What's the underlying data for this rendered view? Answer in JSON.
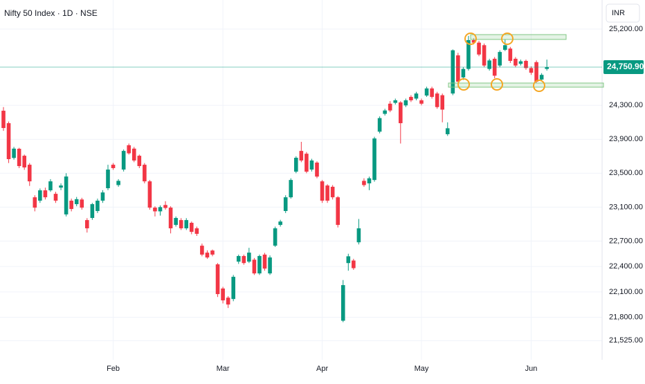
{
  "chart_data": {
    "type": "candlestick",
    "title": "Nifty 50 Index · 1D · NSE",
    "currency": "INR",
    "up_color": "#089981",
    "down_color": "#f23645",
    "ylim": [
      21340,
      25543
    ],
    "yticks": [
      {
        "value": 21525,
        "label": "21,525.00"
      },
      {
        "value": 21800,
        "label": "21,800.00"
      },
      {
        "value": 22100,
        "label": "22,100.00"
      },
      {
        "value": 22400,
        "label": "22,400.00"
      },
      {
        "value": 22700,
        "label": "22,700.00"
      },
      {
        "value": 23100,
        "label": "23,100.00"
      },
      {
        "value": 23500,
        "label": "23,500.00"
      },
      {
        "value": 23900,
        "label": "23,900.00"
      },
      {
        "value": 24300,
        "label": "24,300.00"
      },
      {
        "value": 25200,
        "label": "25,200.00"
      }
    ],
    "last_price": {
      "value": 24750.9,
      "label": "24,750.90"
    },
    "grid": true,
    "categories": [
      null,
      null,
      null,
      null,
      null,
      null,
      null,
      null,
      null,
      null,
      null,
      null,
      null,
      null,
      null,
      null,
      null,
      null,
      null,
      null,
      null,
      "Feb",
      null,
      null,
      null,
      null,
      null,
      null,
      null,
      null,
      null,
      null,
      null,
      null,
      null,
      null,
      null,
      null,
      null,
      null,
      null,
      null,
      "Mar",
      null,
      null,
      null,
      null,
      null,
      null,
      null,
      null,
      null,
      null,
      null,
      null,
      null,
      null,
      null,
      null,
      null,
      null,
      "Apr",
      null,
      null,
      null,
      null,
      null,
      null,
      null,
      null,
      null,
      null,
      null,
      null,
      null,
      null,
      null,
      null,
      null,
      null,
      "May",
      null,
      null,
      null,
      null,
      null,
      null,
      null,
      null,
      null,
      null,
      null,
      null,
      null,
      null,
      null,
      null,
      null,
      null,
      null,
      null,
      "Jun",
      null,
      null,
      null
    ],
    "ohlc": [
      [
        24237,
        24280,
        24000,
        24033
      ],
      [
        24090,
        24110,
        23620,
        23666
      ],
      [
        23680,
        23810,
        23660,
        23790
      ],
      [
        23788,
        23800,
        23560,
        23584
      ],
      [
        23706,
        23720,
        23540,
        23568
      ],
      [
        23600,
        23620,
        23350,
        23404
      ],
      [
        23216,
        23240,
        23050,
        23094
      ],
      [
        23176,
        23320,
        23150,
        23298
      ],
      [
        23298,
        23330,
        23190,
        23216
      ],
      [
        23298,
        23430,
        23280,
        23404
      ],
      [
        23257,
        23280,
        23150,
        23176
      ],
      [
        23330,
        23380,
        23300,
        23355
      ],
      [
        23014,
        23500,
        22990,
        23461
      ],
      [
        23176,
        23200,
        23050,
        23078
      ],
      [
        23135,
        23220,
        23110,
        23194
      ],
      [
        23190,
        23210,
        23070,
        23094
      ],
      [
        22947,
        22970,
        22800,
        22850
      ],
      [
        22972,
        23150,
        22950,
        23135
      ],
      [
        23054,
        23200,
        23030,
        23176
      ],
      [
        23176,
        23300,
        23150,
        23273
      ],
      [
        23323,
        23600,
        23300,
        23543
      ],
      [
        23600,
        23620,
        23540,
        23560
      ],
      [
        23360,
        23430,
        23340,
        23410
      ],
      [
        23543,
        23780,
        23520,
        23763
      ],
      [
        23830,
        23850,
        23720,
        23735
      ],
      [
        23790,
        23810,
        23630,
        23650
      ],
      [
        23706,
        23720,
        23560,
        23584
      ],
      [
        23600,
        23620,
        23380,
        23404
      ],
      [
        23404,
        23420,
        23070,
        23094
      ],
      [
        23094,
        23110,
        22990,
        23050
      ],
      [
        23050,
        23120,
        23000,
        23100
      ],
      [
        23125,
        23170,
        23070,
        23090
      ],
      [
        23094,
        23110,
        22790,
        22850
      ],
      [
        22890,
        22990,
        22870,
        22972
      ],
      [
        22947,
        22970,
        22830,
        22850
      ],
      [
        22850,
        22970,
        22830,
        22947
      ],
      [
        22915,
        22930,
        22780,
        22808
      ],
      [
        22850,
        22870,
        22760,
        22785
      ],
      [
        22645,
        22670,
        22520,
        22540
      ],
      [
        22563,
        22590,
        22490,
        22506
      ],
      [
        22588,
        22600,
        22520,
        22540
      ],
      [
        22425,
        22440,
        22040,
        22074
      ],
      [
        22140,
        22160,
        21964,
        22000
      ],
      [
        22032,
        22050,
        21910,
        21951
      ],
      [
        22016,
        22300,
        21990,
        22278
      ],
      [
        22457,
        22540,
        22430,
        22523
      ],
      [
        22523,
        22540,
        22420,
        22440
      ],
      [
        22457,
        22620,
        22440,
        22563
      ],
      [
        22480,
        22500,
        22300,
        22318
      ],
      [
        22318,
        22540,
        22300,
        22523
      ],
      [
        22540,
        22560,
        22350,
        22375
      ],
      [
        22318,
        22530,
        22300,
        22506
      ],
      [
        22645,
        22870,
        22630,
        22850
      ],
      [
        22890,
        22950,
        22870,
        22930
      ],
      [
        23054,
        23240,
        23030,
        23216
      ],
      [
        23216,
        23440,
        23200,
        23420
      ],
      [
        23518,
        23700,
        23500,
        23682
      ],
      [
        23763,
        23870,
        23630,
        23650
      ],
      [
        23730,
        23750,
        23500,
        23518
      ],
      [
        23543,
        23670,
        23520,
        23650
      ],
      [
        23625,
        23640,
        23440,
        23460
      ],
      [
        23404,
        23420,
        23150,
        23176
      ],
      [
        23355,
        23370,
        23150,
        23176
      ],
      [
        23340,
        23360,
        23190,
        23216
      ],
      [
        23216,
        23230,
        22860,
        22890
      ],
      [
        21760,
        22240,
        21743,
        22180
      ],
      [
        22440,
        22550,
        22350,
        22520
      ],
      [
        22470,
        22490,
        22360,
        22380
      ],
      [
        22685,
        22960,
        22660,
        22850
      ],
      [
        23410,
        23440,
        23340,
        23360
      ],
      [
        23380,
        23460,
        23300,
        23440
      ],
      [
        23420,
        23930,
        23400,
        23910
      ],
      [
        23990,
        24170,
        23970,
        24150
      ],
      [
        24200,
        24260,
        24180,
        24240
      ],
      [
        24320,
        24350,
        24220,
        24240
      ],
      [
        24330,
        24380,
        24310,
        24360
      ],
      [
        24335,
        24350,
        23850,
        24090
      ],
      [
        24300,
        24380,
        24280,
        24360
      ],
      [
        24400,
        24420,
        24340,
        24360
      ],
      [
        24380,
        24460,
        24360,
        24440
      ],
      [
        24360,
        24380,
        24300,
        24320
      ],
      [
        24416,
        24520,
        24400,
        24500
      ],
      [
        24500,
        24520,
        24380,
        24400
      ],
      [
        24440,
        24460,
        24260,
        24280
      ],
      [
        24420,
        24440,
        24100,
        24250
      ],
      [
        23960,
        24100,
        23940,
        24030
      ],
      [
        24440,
        24960,
        24420,
        24950
      ],
      [
        24890,
        24920,
        24560,
        24580
      ],
      [
        24630,
        24750,
        24600,
        24730
      ],
      [
        24730,
        25120,
        24710,
        25070
      ],
      [
        25070,
        25090,
        25020,
        25040
      ],
      [
        25040,
        25060,
        24880,
        24900
      ],
      [
        25010,
        25030,
        24750,
        24770
      ],
      [
        24730,
        24850,
        24710,
        24830
      ],
      [
        24850,
        24870,
        24620,
        24650
      ],
      [
        24770,
        24950,
        24750,
        24930
      ],
      [
        24955,
        25080,
        24940,
        25010
      ],
      [
        24970,
        24990,
        24800,
        24825
      ],
      [
        24850,
        24870,
        24750,
        24770
      ],
      [
        24790,
        24840,
        24770,
        24820
      ],
      [
        24825,
        24840,
        24720,
        24740
      ],
      [
        24740,
        24760,
        24660,
        24685
      ],
      [
        24810,
        24830,
        24560,
        24580
      ],
      [
        24605,
        24680,
        24590,
        24660
      ],
      [
        24730,
        24840,
        24710,
        24750.9
      ]
    ]
  }
}
